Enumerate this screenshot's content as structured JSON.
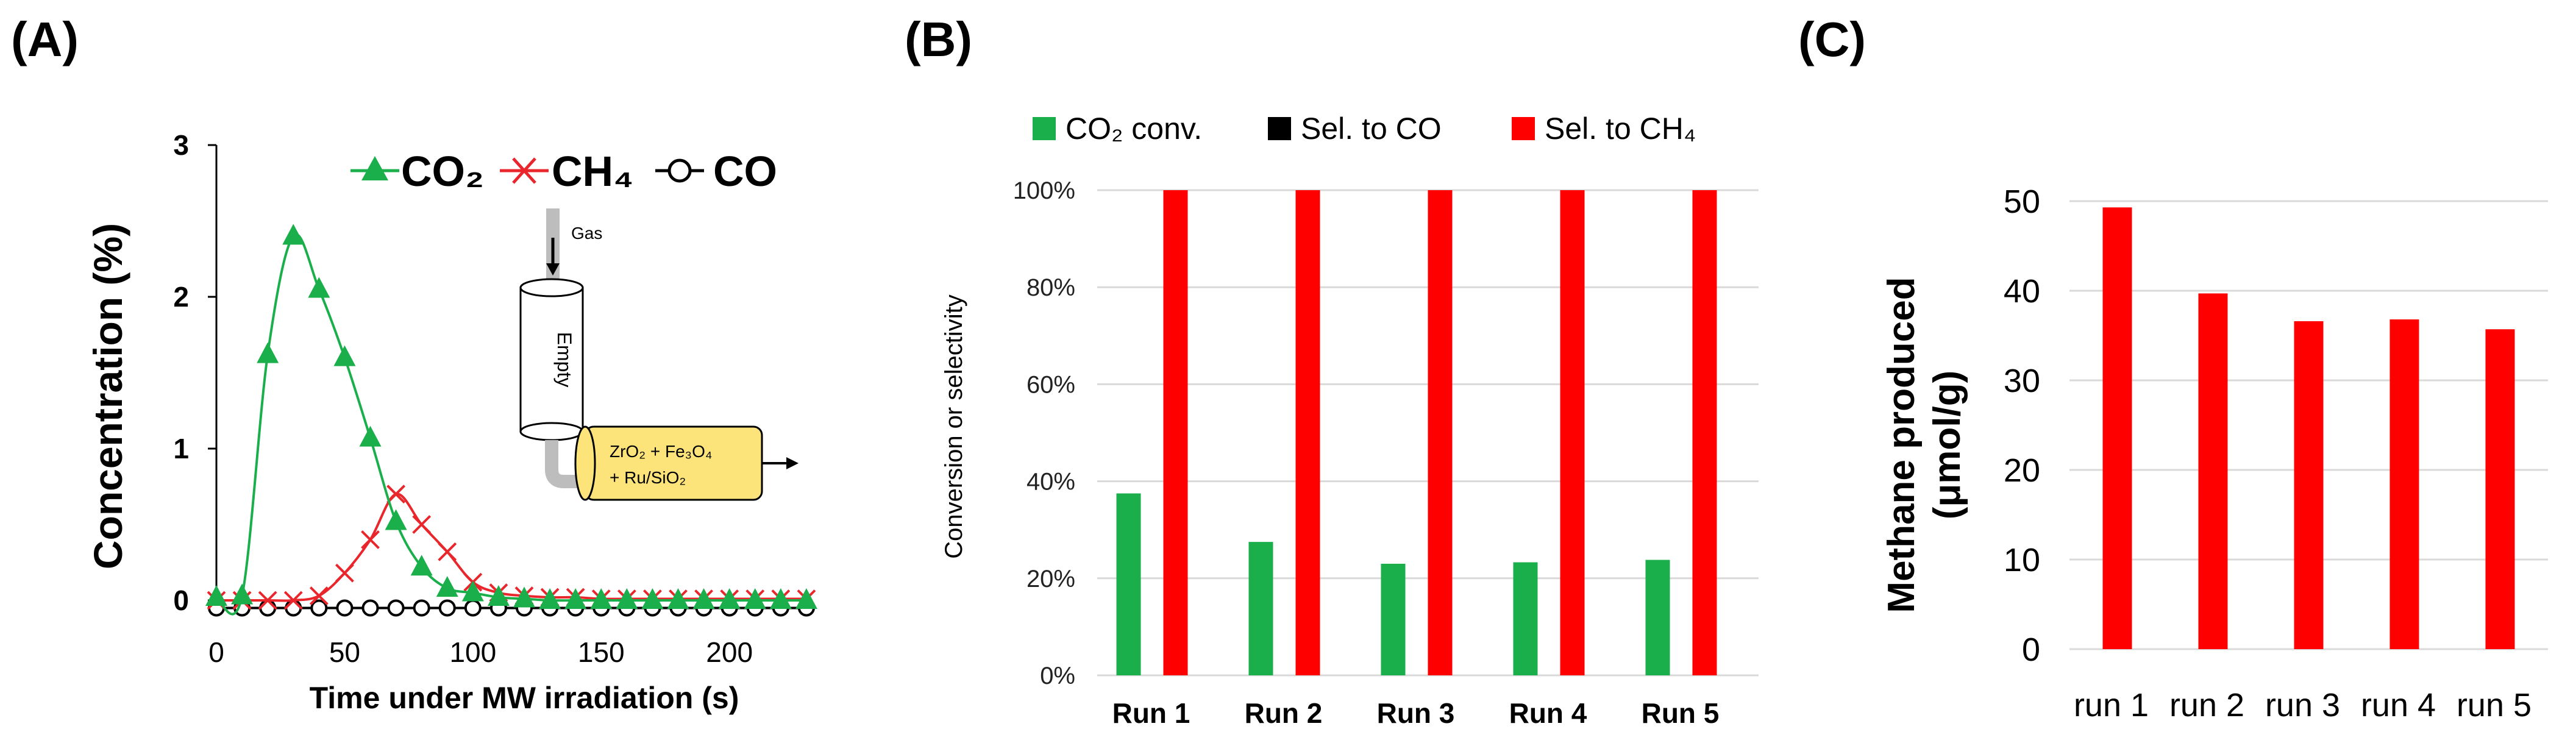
{
  "panels": {
    "a": "(A)",
    "b": "(B)",
    "c": "(C)"
  },
  "inset": {
    "gas": "Gas",
    "empty": "Empty",
    "catalyst_line1": "ZrO₂ + Fe₃O₄",
    "catalyst_line2": "+ Ru/SiO₂"
  },
  "colors": {
    "co2": "#1aaf4b",
    "ch4": "#e8262b",
    "co": "#000000",
    "bar_c": "#ff0000",
    "grid": "#d9d9d9",
    "inset_reactor": "#fce37a"
  },
  "chart_data": [
    {
      "type": "line",
      "panel": "A",
      "xlabel": "Time under MW irradiation (s)",
      "ylabel": "Concentration (%)",
      "xlim": [
        0,
        240
      ],
      "ylim": [
        0,
        3
      ],
      "xticks": [
        "0",
        "50",
        "100",
        "150",
        "200"
      ],
      "yticks": [
        "0",
        "1",
        "2",
        "3"
      ],
      "legend_position": "top-right",
      "series": [
        {
          "name": "CO₂",
          "marker": "triangle",
          "x": [
            0,
            10,
            20,
            30,
            40,
            50,
            60,
            70,
            80,
            90,
            100,
            110,
            120,
            130,
            140,
            150,
            160,
            170,
            180,
            190,
            200,
            210,
            220,
            230
          ],
          "y": [
            0.02,
            0.03,
            1.62,
            2.4,
            2.05,
            1.6,
            1.07,
            0.52,
            0.22,
            0.08,
            0.05,
            0.02,
            0.01,
            0.0,
            0.0,
            0.0,
            0.0,
            0.0,
            0.0,
            0.0,
            0.0,
            0.0,
            0.0,
            0.0
          ]
        },
        {
          "name": "CH₄",
          "marker": "x",
          "x": [
            0,
            10,
            20,
            30,
            40,
            50,
            60,
            70,
            80,
            90,
            100,
            110,
            120,
            130,
            140,
            150,
            160,
            170,
            180,
            190,
            200,
            210,
            220,
            230
          ],
          "y": [
            0.0,
            0.0,
            0.0,
            0.0,
            0.03,
            0.18,
            0.4,
            0.7,
            0.5,
            0.32,
            0.12,
            0.05,
            0.03,
            0.02,
            0.02,
            0.01,
            0.01,
            0.01,
            0.01,
            0.01,
            0.01,
            0.01,
            0.01,
            0.01
          ]
        },
        {
          "name": "CO",
          "marker": "circle",
          "x": [
            0,
            10,
            20,
            30,
            40,
            50,
            60,
            70,
            80,
            90,
            100,
            110,
            120,
            130,
            140,
            150,
            160,
            170,
            180,
            190,
            200,
            210,
            220,
            230
          ],
          "y": [
            -0.05,
            -0.05,
            -0.05,
            -0.05,
            -0.05,
            -0.05,
            -0.05,
            -0.05,
            -0.05,
            -0.05,
            -0.05,
            -0.05,
            -0.05,
            -0.05,
            -0.05,
            -0.05,
            -0.05,
            -0.05,
            -0.05,
            -0.05,
            -0.05,
            -0.05,
            -0.05,
            -0.05
          ]
        }
      ]
    },
    {
      "type": "bar",
      "panel": "B",
      "ylabel": "Conversion or selectivity",
      "ylim": [
        0,
        100
      ],
      "yticks": [
        "0%",
        "20%",
        "40%",
        "60%",
        "80%",
        "100%"
      ],
      "categories": [
        "Run 1",
        "Run 2",
        "Run 3",
        "Run 4",
        "Run 5"
      ],
      "legend_position": "top",
      "grid": true,
      "series": [
        {
          "name": "CO₂ conv.",
          "color": "#1aaf4b",
          "values": [
            37.5,
            27.5,
            23,
            23.3,
            23.8
          ]
        },
        {
          "name": "Sel. to CO",
          "color": "#000000",
          "values": [
            0,
            0,
            0,
            0,
            0
          ]
        },
        {
          "name": "Sel. to CH₄",
          "color": "#ff0000",
          "values": [
            100,
            100,
            100,
            100,
            100
          ]
        }
      ]
    },
    {
      "type": "bar",
      "panel": "C",
      "ylabel_line1": "Methane produced",
      "ylabel_line2": "(μmol/g)",
      "ylim": [
        0,
        50
      ],
      "yticks": [
        "0",
        "10",
        "20",
        "30",
        "40",
        "50"
      ],
      "categories": [
        "run 1",
        "run 2",
        "run 3",
        "run 4",
        "run 5"
      ],
      "grid": true,
      "values": [
        49.3,
        39.7,
        36.6,
        36.8,
        35.7
      ]
    }
  ]
}
